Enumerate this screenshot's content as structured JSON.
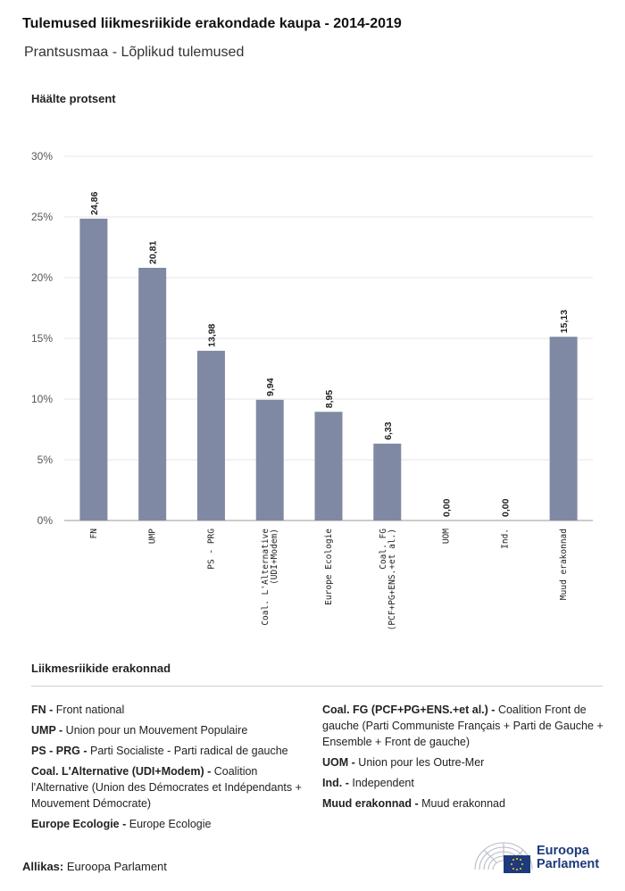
{
  "header": {
    "title": "Tulemused liikmesriikide erakondade kaupa - 2014-2019",
    "subtitle": "Prantsusmaa - Lõplikud tulemused"
  },
  "chart_data": {
    "type": "bar",
    "ylabel": "Häälte protsent",
    "categories": [
      "FN",
      "UMP",
      "PS - PRG",
      "Coal. L'Alternative (UDI+Modem)",
      "Europe Ecologie",
      "Coal. FG (PCF+PG+ENS.+et al.)",
      "UOM",
      "Ind.",
      "Muud erakonnad"
    ],
    "category_lines": [
      [
        "FN"
      ],
      [
        "UMP"
      ],
      [
        "PS - PRG"
      ],
      [
        "Coal. L'Alternative",
        "(UDI+Modem)"
      ],
      [
        "Europe Ecologie"
      ],
      [
        "Coal. FG",
        "(PCF+PG+ENS.+et al.)"
      ],
      [
        "UOM"
      ],
      [
        "Ind."
      ],
      [
        "Muud erakonnad"
      ]
    ],
    "values": [
      24.86,
      20.81,
      13.98,
      9.94,
      8.95,
      6.33,
      0.0,
      0.0,
      15.13
    ],
    "value_labels": [
      "24,86",
      "20,81",
      "13,98",
      "9,94",
      "8,95",
      "6,33",
      "0,00",
      "0,00",
      "15,13"
    ],
    "ylim": [
      0,
      30
    ],
    "yticks": [
      "0%",
      "5%",
      "10%",
      "15%",
      "20%",
      "25%",
      "30%"
    ],
    "grid": true,
    "bar_color": "#8089a3"
  },
  "legend": {
    "title": "Liikmesriikide erakonnad",
    "left": [
      {
        "abbr": "FN -",
        "desc": "Front national"
      },
      {
        "abbr": "UMP -",
        "desc": "Union pour un Mouvement Populaire"
      },
      {
        "abbr": "PS - PRG -",
        "desc": "Parti Socialiste - Parti radical de gauche"
      },
      {
        "abbr": "Coal. L'Alternative (UDI+Modem) -",
        "desc": "Coalition l'Alternative (Union des Démocrates et Indépendants + Mouvement Démocrate)"
      },
      {
        "abbr": "Europe Ecologie -",
        "desc": "Europe Ecologie"
      }
    ],
    "right": [
      {
        "abbr": "Coal. FG (PCF+PG+ENS.+et al.) -",
        "desc": "Coalition Front de gauche (Parti Communiste Français + Parti de Gauche + Ensemble + Front de gauche)"
      },
      {
        "abbr": "UOM -",
        "desc": "Union pour les Outre-Mer"
      },
      {
        "abbr": "Ind. -",
        "desc": "Independent"
      },
      {
        "abbr": "Muud erakonnad -",
        "desc": "Muud erakonnad"
      }
    ]
  },
  "footer": {
    "source_label": "Allikas:",
    "source_value": "Euroopa Parlament",
    "logo_line1": "Euroopa",
    "logo_line2": "Parlament"
  }
}
